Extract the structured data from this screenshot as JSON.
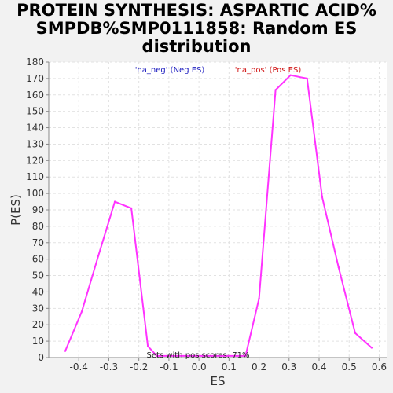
{
  "chart_data": {
    "type": "line",
    "title_lines": [
      "PROTEIN SYNTHESIS: ASPARTIC ACID%",
      "SMPDB%SMP0111858: Random ES",
      "distribution"
    ],
    "xlabel": "ES",
    "ylabel": "P(ES)",
    "xlim": [
      -0.5,
      0.625
    ],
    "ylim": [
      0,
      180
    ],
    "x_ticks": [
      "-0.4",
      "-0.3",
      "-0.2",
      "-0.1",
      "0.0",
      "0.1",
      "0.2",
      "0.3",
      "0.4",
      "0.5",
      "0.6"
    ],
    "x_tick_values": [
      -0.4,
      -0.3,
      -0.2,
      -0.1,
      0.0,
      0.1,
      0.2,
      0.3,
      0.4,
      0.5,
      0.6
    ],
    "y_ticks": [
      "0",
      "10",
      "20",
      "30",
      "40",
      "50",
      "60",
      "70",
      "80",
      "90",
      "100",
      "110",
      "120",
      "130",
      "140",
      "150",
      "160",
      "170",
      "180"
    ],
    "y_tick_values": [
      0,
      10,
      20,
      30,
      40,
      50,
      60,
      70,
      80,
      90,
      100,
      110,
      120,
      130,
      140,
      150,
      160,
      170,
      180
    ],
    "grid": true,
    "legend": [
      {
        "label": "'na_neg' (Neg ES)",
        "color": "#2020c0"
      },
      {
        "label": "'na_pos' (Pos ES)",
        "color": "#d01010"
      }
    ],
    "annotation": "Sets with pos scores: 71%",
    "line_color": "#ff33ff",
    "series": [
      {
        "x": [
          -0.445,
          -0.39,
          -0.335,
          -0.28,
          -0.225,
          -0.17,
          -0.14,
          0.155,
          0.2,
          0.255,
          0.305,
          0.36,
          0.41,
          0.465,
          0.52,
          0.575
        ],
        "values": [
          4,
          28,
          62,
          95,
          91,
          7,
          1,
          1,
          36,
          163,
          172,
          170,
          98,
          55,
          15,
          6
        ]
      }
    ]
  }
}
